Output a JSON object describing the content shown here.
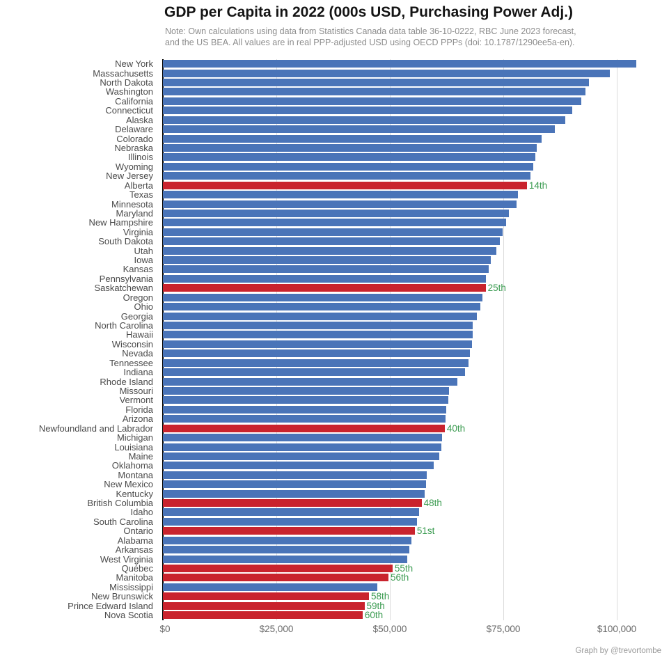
{
  "header": {
    "title": "GDP per Capita in 2022 (000s USD, Purchasing Power Adj.)",
    "note_line1": "Note: Own calculations using data from Statistics Canada data table 36-10-0222, RBC June 2023 forecast,",
    "note_line2": "and the US BEA. All values are in real PPP-adjusted USD using OECD PPPs (doi: 10.1787/1290ee5a-en)."
  },
  "footer": {
    "credit": "Graph by @trevortombe"
  },
  "colors": {
    "us_state_bar": "#4a74b8",
    "canada_province_bar": "#c9232d",
    "rank_label": "#3a9b50",
    "axis_line": "#000000",
    "gridline": "#dcdcdc",
    "category_label": "#4a4a4a",
    "tick_label": "#666666",
    "note_text": "#8c8c8c"
  },
  "chart_data": {
    "type": "bar",
    "orientation": "horizontal",
    "title": "GDP per Capita in 2022 (000s USD, Purchasing Power Adj.)",
    "xlabel": "",
    "ylabel": "",
    "xlim": [
      0,
      111500
    ],
    "grid": "vertical-only",
    "legend": "none",
    "x_ticks": [
      0,
      25000,
      50000,
      75000,
      100000
    ],
    "x_tick_labels": [
      "$0",
      "$25,000",
      "$50,000",
      "$75,000",
      "$100,000"
    ],
    "bars": [
      {
        "name": "New York",
        "value": 104300,
        "group": "us",
        "rank": null
      },
      {
        "name": "Massachusetts",
        "value": 98500,
        "group": "us",
        "rank": null
      },
      {
        "name": "North Dakota",
        "value": 93900,
        "group": "us",
        "rank": null
      },
      {
        "name": "Washington",
        "value": 93100,
        "group": "us",
        "rank": null
      },
      {
        "name": "California",
        "value": 92200,
        "group": "us",
        "rank": null
      },
      {
        "name": "Connecticut",
        "value": 90200,
        "group": "us",
        "rank": null
      },
      {
        "name": "Alaska",
        "value": 88700,
        "group": "us",
        "rank": null
      },
      {
        "name": "Delaware",
        "value": 86400,
        "group": "us",
        "rank": null
      },
      {
        "name": "Colorado",
        "value": 83500,
        "group": "us",
        "rank": null
      },
      {
        "name": "Nebraska",
        "value": 82400,
        "group": "us",
        "rank": null
      },
      {
        "name": "Illinois",
        "value": 82000,
        "group": "us",
        "rank": null
      },
      {
        "name": "Wyoming",
        "value": 81600,
        "group": "us",
        "rank": null
      },
      {
        "name": "New Jersey",
        "value": 80900,
        "group": "us",
        "rank": null
      },
      {
        "name": "Alberta",
        "value": 80200,
        "group": "canada",
        "rank": "14th"
      },
      {
        "name": "Texas",
        "value": 78200,
        "group": "us",
        "rank": null
      },
      {
        "name": "Minnesota",
        "value": 77900,
        "group": "us",
        "rank": null
      },
      {
        "name": "Maryland",
        "value": 76200,
        "group": "us",
        "rank": null
      },
      {
        "name": "New Hampshire",
        "value": 75600,
        "group": "us",
        "rank": null
      },
      {
        "name": "Virginia",
        "value": 74800,
        "group": "us",
        "rank": null
      },
      {
        "name": "South Dakota",
        "value": 74300,
        "group": "us",
        "rank": null
      },
      {
        "name": "Utah",
        "value": 73400,
        "group": "us",
        "rank": null
      },
      {
        "name": "Iowa",
        "value": 72300,
        "group": "us",
        "rank": null
      },
      {
        "name": "Kansas",
        "value": 71700,
        "group": "us",
        "rank": null
      },
      {
        "name": "Pennsylvania",
        "value": 71200,
        "group": "us",
        "rank": null
      },
      {
        "name": "Saskatchewan",
        "value": 71100,
        "group": "canada",
        "rank": "25th"
      },
      {
        "name": "Oregon",
        "value": 70400,
        "group": "us",
        "rank": null
      },
      {
        "name": "Ohio",
        "value": 69900,
        "group": "us",
        "rank": null
      },
      {
        "name": "Georgia",
        "value": 69200,
        "group": "us",
        "rank": null
      },
      {
        "name": "North Carolina",
        "value": 68300,
        "group": "us",
        "rank": null
      },
      {
        "name": "Hawaii",
        "value": 68200,
        "group": "us",
        "rank": null
      },
      {
        "name": "Wisconsin",
        "value": 68100,
        "group": "us",
        "rank": null
      },
      {
        "name": "Nevada",
        "value": 67600,
        "group": "us",
        "rank": null
      },
      {
        "name": "Tennessee",
        "value": 67400,
        "group": "us",
        "rank": null
      },
      {
        "name": "Indiana",
        "value": 66600,
        "group": "us",
        "rank": null
      },
      {
        "name": "Rhode Island",
        "value": 64800,
        "group": "us",
        "rank": null
      },
      {
        "name": "Missouri",
        "value": 63100,
        "group": "us",
        "rank": null
      },
      {
        "name": "Vermont",
        "value": 62800,
        "group": "us",
        "rank": null
      },
      {
        "name": "Florida",
        "value": 62400,
        "group": "us",
        "rank": null
      },
      {
        "name": "Arizona",
        "value": 62200,
        "group": "us",
        "rank": null
      },
      {
        "name": "Newfoundland and Labrador",
        "value": 62100,
        "group": "canada",
        "rank": "40th"
      },
      {
        "name": "Michigan",
        "value": 61500,
        "group": "us",
        "rank": null
      },
      {
        "name": "Louisiana",
        "value": 61400,
        "group": "us",
        "rank": null
      },
      {
        "name": "Maine",
        "value": 60900,
        "group": "us",
        "rank": null
      },
      {
        "name": "Oklahoma",
        "value": 59700,
        "group": "us",
        "rank": null
      },
      {
        "name": "Montana",
        "value": 58100,
        "group": "us",
        "rank": null
      },
      {
        "name": "New Mexico",
        "value": 57900,
        "group": "us",
        "rank": null
      },
      {
        "name": "Kentucky",
        "value": 57700,
        "group": "us",
        "rank": null
      },
      {
        "name": "British Columbia",
        "value": 57000,
        "group": "canada",
        "rank": "48th"
      },
      {
        "name": "Idaho",
        "value": 56500,
        "group": "us",
        "rank": null
      },
      {
        "name": "South Carolina",
        "value": 56000,
        "group": "us",
        "rank": null
      },
      {
        "name": "Ontario",
        "value": 55500,
        "group": "canada",
        "rank": "51st"
      },
      {
        "name": "Alabama",
        "value": 54800,
        "group": "us",
        "rank": null
      },
      {
        "name": "Arkansas",
        "value": 54300,
        "group": "us",
        "rank": null
      },
      {
        "name": "West Virginia",
        "value": 53800,
        "group": "us",
        "rank": null
      },
      {
        "name": "Québec",
        "value": 50600,
        "group": "canada",
        "rank": "55th"
      },
      {
        "name": "Manitoba",
        "value": 49700,
        "group": "canada",
        "rank": "56th"
      },
      {
        "name": "Mississippi",
        "value": 47300,
        "group": "us",
        "rank": null
      },
      {
        "name": "New Brunswick",
        "value": 45400,
        "group": "canada",
        "rank": "58th"
      },
      {
        "name": "Prince Edward Island",
        "value": 44400,
        "group": "canada",
        "rank": "59th"
      },
      {
        "name": "Nova Scotia",
        "value": 44000,
        "group": "canada",
        "rank": "60th"
      }
    ]
  }
}
